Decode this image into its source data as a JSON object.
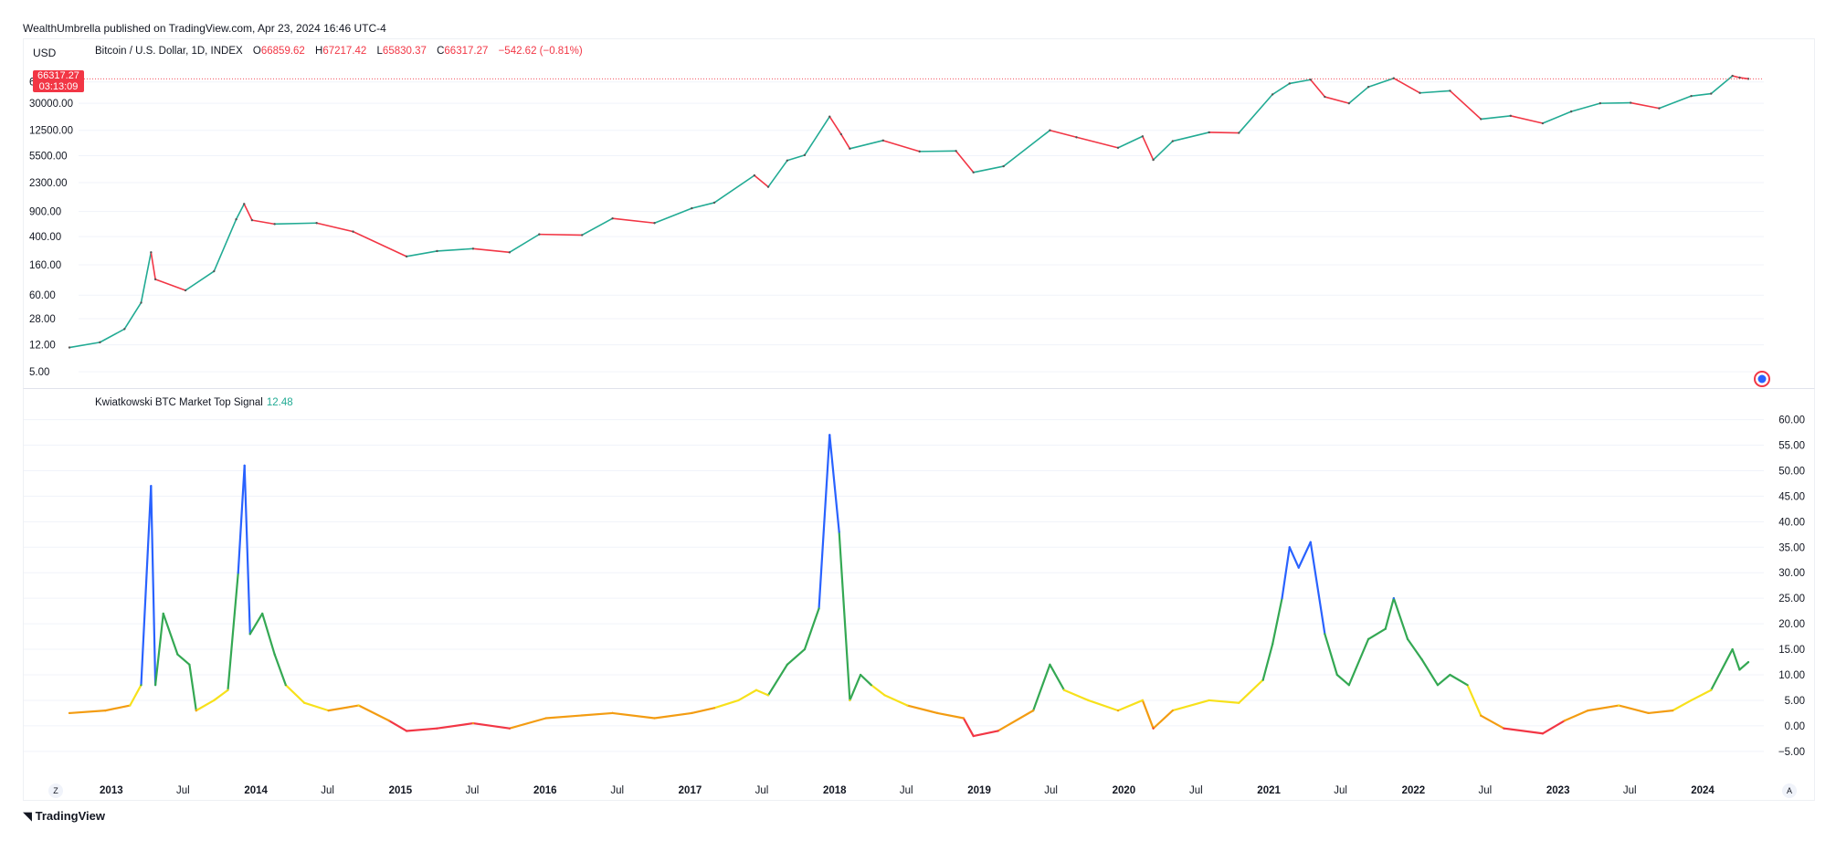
{
  "header": {
    "publisher_line": "WealthUmbrella published on TradingView.com, Apr 23, 2024 16:46 UTC-4"
  },
  "price_panel": {
    "currency": "USD",
    "symbol": "Bitcoin / U.S. Dollar, 1D, INDEX",
    "ohlc": {
      "o_label": "O",
      "o": "66859.62",
      "h_label": "H",
      "h": "67217.42",
      "l_label": "L",
      "l": "65830.37",
      "c_label": "C",
      "c": "66317.27",
      "change": "−542.62 (−0.81%)"
    },
    "price_tag": {
      "value": "66317.27",
      "countdown": "03:13:09"
    },
    "colors": {
      "up": "#22ab94",
      "down": "#f23645"
    }
  },
  "signal_panel": {
    "name": "Kwiatkowski BTC Market Top Signal",
    "value": "12.48",
    "colors": {
      "red": "#f23645",
      "orange": "#f39c12",
      "yellow": "#f7e11b",
      "green": "#34a853",
      "blue": "#2962ff"
    }
  },
  "x_axis": {
    "labels": [
      "2013",
      "Jul",
      "2014",
      "Jul",
      "2015",
      "Jul",
      "2016",
      "Jul",
      "2017",
      "Jul",
      "2018",
      "Jul",
      "2019",
      "Jul",
      "2020",
      "Jul",
      "2021",
      "Jul",
      "2022",
      "Jul",
      "2023",
      "Jul",
      "2024"
    ],
    "bold": [
      true,
      false,
      true,
      false,
      true,
      false,
      true,
      false,
      true,
      false,
      true,
      false,
      true,
      false,
      true,
      false,
      true,
      false,
      true,
      false,
      true,
      false,
      true
    ]
  },
  "footer": {
    "logo_text": "TradingView",
    "z_button": "Z",
    "a_button": "A"
  },
  "chart_data": [
    {
      "type": "line",
      "scale": "log",
      "y_tick_labels": [
        "60000.00",
        "30000.00",
        "12500.00",
        "5500.00",
        "2300.00",
        "900.00",
        "400.00",
        "160.00",
        "60.00",
        "28.00",
        "12.00",
        "5.00"
      ],
      "y_ticks": [
        60000,
        30000,
        12500,
        5500,
        2300,
        900,
        400,
        160,
        60,
        28,
        12,
        5
      ],
      "x": [
        "2012-09-15",
        "2012-12-01",
        "2013-02-01",
        "2013-03-15",
        "2013-04-09",
        "2013-04-20",
        "2013-07-05",
        "2013-09-15",
        "2013-11-10",
        "2013-11-30",
        "2013-12-20",
        "2014-02-15",
        "2014-06-01",
        "2014-09-01",
        "2015-01-14",
        "2015-04-01",
        "2015-07-01",
        "2015-10-01",
        "2015-12-15",
        "2016-04-01",
        "2016-06-17",
        "2016-10-01",
        "2017-01-03",
        "2017-03-01",
        "2017-06-10",
        "2017-07-15",
        "2017-09-01",
        "2017-10-15",
        "2017-12-17",
        "2018-01-15",
        "2018-02-06",
        "2018-05-01",
        "2018-08-01",
        "2018-11-01",
        "2018-12-15",
        "2019-03-01",
        "2019-06-26",
        "2019-09-01",
        "2019-12-15",
        "2020-02-15",
        "2020-03-13",
        "2020-05-01",
        "2020-08-01",
        "2020-10-15",
        "2021-01-08",
        "2021-02-20",
        "2021-04-14",
        "2021-05-20",
        "2021-07-20",
        "2021-09-07",
        "2021-11-10",
        "2022-01-15",
        "2022-04-01",
        "2022-06-18",
        "2022-09-01",
        "2022-11-21",
        "2023-02-01",
        "2023-04-15",
        "2023-07-01",
        "2023-09-11",
        "2023-12-01",
        "2024-01-20",
        "2024-03-14",
        "2024-04-01",
        "2024-04-23"
      ],
      "values": [
        11,
        13,
        20,
        47,
        240,
        100,
        70,
        130,
        700,
        1150,
        680,
        600,
        620,
        470,
        210,
        250,
        270,
        240,
        430,
        420,
        720,
        620,
        1000,
        1200,
        2900,
        2000,
        4700,
        5600,
        19500,
        11000,
        6900,
        9000,
        6300,
        6400,
        3200,
        3900,
        12500,
        10000,
        7100,
        10300,
        4800,
        8800,
        11700,
        11500,
        40000,
        57000,
        64500,
        37000,
        30000,
        51000,
        67500,
        42000,
        45000,
        18000,
        20000,
        15700,
        23000,
        30000,
        30500,
        25500,
        38000,
        41000,
        73000,
        69000,
        66300
      ]
    },
    {
      "type": "line",
      "y_tick_labels": [
        "60.00",
        "55.00",
        "50.00",
        "45.00",
        "40.00",
        "35.00",
        "30.00",
        "25.00",
        "20.00",
        "15.00",
        "10.00",
        "5.00",
        "0.00",
        "−5.00"
      ],
      "y_ticks": [
        60,
        55,
        50,
        45,
        40,
        35,
        30,
        25,
        20,
        15,
        10,
        5,
        0,
        -5
      ],
      "color_bands": [
        {
          "max": 0,
          "color": "red"
        },
        {
          "max": 3.5,
          "color": "orange"
        },
        {
          "max": 7,
          "color": "yellow"
        },
        {
          "max": 23,
          "color": "green"
        },
        {
          "max": 100,
          "color": "blue"
        }
      ],
      "x": [
        "2012-09-15",
        "2012-12-15",
        "2013-02-15",
        "2013-03-15",
        "2013-04-09",
        "2013-04-20",
        "2013-05-10",
        "2013-06-15",
        "2013-07-15",
        "2013-08-01",
        "2013-09-15",
        "2013-10-20",
        "2013-11-15",
        "2013-12-01",
        "2013-12-15",
        "2014-01-15",
        "2014-02-15",
        "2014-03-15",
        "2014-05-01",
        "2014-07-01",
        "2014-09-15",
        "2014-12-01",
        "2015-01-14",
        "2015-04-01",
        "2015-07-01",
        "2015-10-01",
        "2016-01-01",
        "2016-06-17",
        "2016-10-01",
        "2017-01-03",
        "2017-03-01",
        "2017-05-01",
        "2017-06-15",
        "2017-07-15",
        "2017-09-01",
        "2017-10-15",
        "2017-11-20",
        "2017-12-17",
        "2018-01-10",
        "2018-02-06",
        "2018-03-05",
        "2018-04-01",
        "2018-05-05",
        "2018-07-01",
        "2018-09-15",
        "2018-11-20",
        "2018-12-15",
        "2019-02-15",
        "2019-05-15",
        "2019-06-26",
        "2019-08-01",
        "2019-10-01",
        "2019-12-15",
        "2020-02-15",
        "2020-03-13",
        "2020-05-01",
        "2020-08-01",
        "2020-10-15",
        "2020-12-15",
        "2021-01-08",
        "2021-02-01",
        "2021-02-20",
        "2021-03-15",
        "2021-04-14",
        "2021-05-20",
        "2021-06-20",
        "2021-07-20",
        "2021-09-07",
        "2021-10-20",
        "2021-11-10",
        "2021-12-15",
        "2022-01-20",
        "2022-03-01",
        "2022-04-01",
        "2022-05-15",
        "2022-06-18",
        "2022-08-15",
        "2022-11-21",
        "2023-01-15",
        "2023-03-15",
        "2023-06-01",
        "2023-08-15",
        "2023-10-15",
        "2023-12-01",
        "2024-01-20",
        "2024-03-14",
        "2024-04-01",
        "2024-04-23"
      ],
      "values": [
        2.5,
        3,
        4,
        8,
        47,
        8,
        22,
        14,
        12,
        3,
        5,
        7,
        30,
        51,
        18,
        22,
        14,
        8,
        4.5,
        3,
        4,
        1,
        -1,
        -0.5,
        0.5,
        -0.5,
        1.5,
        2.5,
        1.5,
        2.5,
        3.5,
        5,
        7,
        6,
        12,
        15,
        23,
        57,
        38,
        5,
        10,
        8,
        6,
        4,
        2.5,
        1.5,
        -2,
        -1,
        3,
        12,
        7,
        5,
        3,
        5,
        -0.5,
        3,
        5,
        4.5,
        9,
        16,
        25,
        35,
        31,
        36,
        18,
        10,
        8,
        17,
        19,
        25,
        17,
        13,
        8,
        10,
        8,
        2,
        -0.5,
        -1.5,
        1,
        3,
        4,
        2.5,
        3,
        5,
        7,
        15,
        11,
        12.48
      ]
    }
  ]
}
